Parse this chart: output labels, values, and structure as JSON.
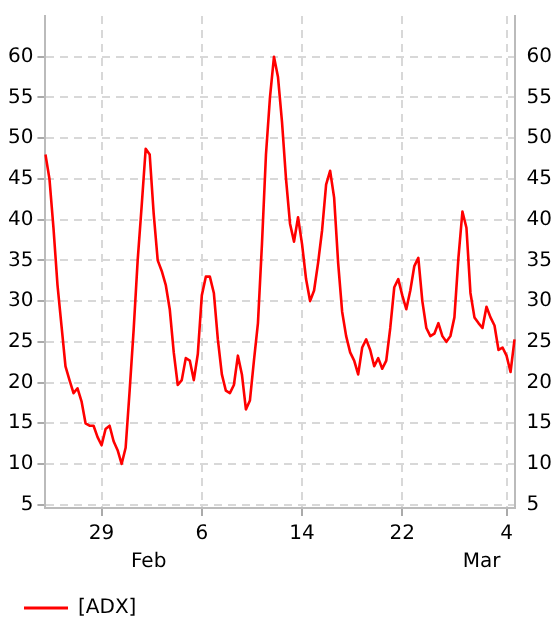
{
  "chart_data": {
    "type": "line",
    "categories": [
      null,
      null,
      null,
      null,
      null,
      null,
      null,
      null,
      null,
      null,
      null,
      null,
      null,
      null,
      "29",
      null,
      null,
      null,
      null,
      null,
      null,
      null,
      null,
      null,
      null,
      null,
      null,
      null,
      null,
      null,
      null,
      null,
      null,
      null,
      null,
      null,
      null,
      null,
      null,
      "6",
      null,
      null,
      null,
      null,
      null,
      null,
      null,
      null,
      null,
      null,
      null,
      null,
      null,
      null,
      null,
      null,
      null,
      null,
      null,
      null,
      null,
      null,
      null,
      null,
      "14",
      null,
      null,
      null,
      null,
      null,
      null,
      null,
      null,
      null,
      null,
      null,
      null,
      null,
      null,
      null,
      null,
      null,
      null,
      null,
      null,
      null,
      null,
      null,
      null,
      "22",
      null,
      null,
      null,
      null,
      null,
      null,
      null,
      null,
      null,
      null,
      null,
      null,
      null,
      null,
      null,
      null,
      null,
      null,
      null,
      null,
      null,
      null,
      null,
      null,
      null,
      "4",
      null,
      null
    ],
    "series": [
      {
        "name": "[ADX]",
        "color": "#ff0000",
        "values": [
          48,
          45,
          39,
          32,
          27,
          22,
          20.3,
          18.7,
          19.3,
          17.7,
          15,
          14.7,
          14.7,
          13.3,
          12.3,
          14.3,
          14.7,
          12.8,
          11.7,
          10,
          12,
          19,
          26.5,
          35,
          41.7,
          48.7,
          48,
          40.7,
          35,
          33.7,
          32,
          29,
          23.7,
          19.7,
          20.3,
          23,
          22.7,
          20.3,
          23.5,
          30.7,
          33,
          33,
          31,
          25.3,
          21,
          19,
          18.7,
          19.7,
          23.3,
          21,
          16.7,
          17.8,
          22.7,
          27.3,
          37,
          48,
          55,
          60,
          57.5,
          52,
          45,
          39.5,
          37.3,
          40.3,
          37,
          32.7,
          30,
          31.3,
          34.7,
          38.7,
          44.3,
          46,
          42.7,
          34.7,
          28.7,
          25.7,
          23.7,
          22.7,
          21,
          24.3,
          25.3,
          24,
          22,
          23,
          21.7,
          22.7,
          26.7,
          31.7,
          32.7,
          30.7,
          29,
          31.3,
          34.3,
          35.3,
          30,
          26.7,
          25.7,
          26,
          27.3,
          25.7,
          25,
          25.7,
          28,
          35.3,
          41,
          39,
          31,
          28,
          27.3,
          26.7,
          29.3,
          28,
          27,
          24,
          24.3,
          23.3,
          21.3,
          25.3
        ]
      }
    ],
    "ylim": [
      4.6,
      65
    ],
    "yticks": [
      5,
      10,
      15,
      20,
      25,
      30,
      35,
      40,
      45,
      50,
      55,
      60
    ],
    "y2lim": [
      4.6,
      65
    ],
    "y2ticks": [
      5,
      10,
      15,
      20,
      25,
      30,
      35,
      40,
      45,
      50,
      55,
      60
    ],
    "grid": true,
    "legend": "bottom",
    "marker": "none",
    "line_style": "solid",
    "annotations": [
      "Feb",
      "Mar"
    ]
  }
}
